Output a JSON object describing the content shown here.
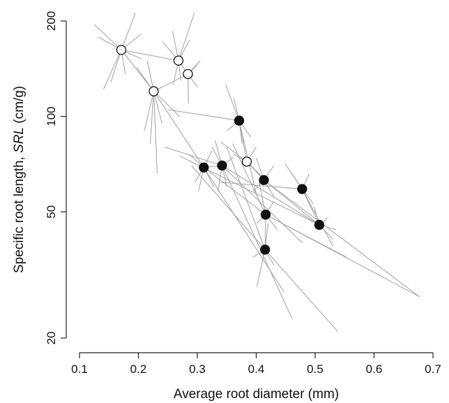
{
  "chart_data": {
    "type": "scatter",
    "xlabel": "Average root diameter (mm)",
    "ylabel_prefix": "Specific root length,",
    "ylabel_symbol": "SRL",
    "ylabel_unit": "(cm/g)",
    "xlim": [
      0.1,
      0.7
    ],
    "ylim": [
      20,
      200
    ],
    "y_scale": "log",
    "x_ticks": [
      0.1,
      0.2,
      0.3,
      0.4,
      0.5,
      0.6,
      0.7
    ],
    "x_tick_labels": [
      "0.1",
      "0.2",
      "0.3",
      "0.4",
      "0.5",
      "0.6",
      "0.7"
    ],
    "y_ticks": [
      20,
      50,
      100,
      200
    ],
    "y_tick_labels": [
      "20",
      "50",
      "100",
      "200"
    ],
    "grid": false,
    "legend": "none",
    "colors": {
      "filled": "#111111",
      "open_fill": "#ffffff",
      "outline": "#111111",
      "lines": "#a8a8a8"
    },
    "series": [
      {
        "marker": "open",
        "points": [
          {
            "x": 0.171,
            "y": 162
          },
          {
            "x": 0.226,
            "y": 120
          },
          {
            "x": 0.268,
            "y": 150
          },
          {
            "x": 0.284,
            "y": 136
          },
          {
            "x": 0.384,
            "y": 72
          }
        ]
      },
      {
        "marker": "filled",
        "points": [
          {
            "x": 0.371,
            "y": 97
          },
          {
            "x": 0.311,
            "y": 69
          },
          {
            "x": 0.342,
            "y": 70
          },
          {
            "x": 0.413,
            "y": 63
          },
          {
            "x": 0.478,
            "y": 59
          },
          {
            "x": 0.416,
            "y": 49
          },
          {
            "x": 0.507,
            "y": 45.5
          },
          {
            "x": 0.415,
            "y": 38
          }
        ]
      }
    ],
    "connections": [
      {
        "from": [
          0.171,
          162
        ],
        "to": [
          0.268,
          150
        ]
      },
      {
        "from": [
          0.226,
          120
        ],
        "to": [
          0.171,
          162
        ]
      },
      {
        "from": [
          0.226,
          120
        ],
        "to": [
          0.284,
          136
        ]
      },
      {
        "from": [
          0.268,
          150
        ],
        "to": [
          0.284,
          136
        ]
      },
      {
        "from": [
          0.226,
          120
        ],
        "to": [
          0.311,
          69
        ]
      },
      {
        "from": [
          0.371,
          97
        ],
        "to": [
          0.384,
          72
        ]
      },
      {
        "from": [
          0.384,
          72
        ],
        "to": [
          0.413,
          63
        ]
      },
      {
        "from": [
          0.311,
          69
        ],
        "to": [
          0.416,
          49
        ]
      },
      {
        "from": [
          0.342,
          70
        ],
        "to": [
          0.507,
          45.5
        ]
      },
      {
        "from": [
          0.413,
          63
        ],
        "to": [
          0.507,
          45.5
        ]
      },
      {
        "from": [
          0.478,
          59
        ],
        "to": [
          0.507,
          45.5
        ]
      },
      {
        "from": [
          0.416,
          49
        ],
        "to": [
          0.415,
          38
        ]
      },
      {
        "from": [
          0.311,
          69
        ],
        "to": [
          0.342,
          70
        ]
      },
      {
        "from": [
          0.25,
          105
        ],
        "to": [
          0.371,
          97
        ]
      },
      {
        "from": [
          0.245,
          80
        ],
        "to": [
          0.342,
          70
        ]
      },
      {
        "from": [
          0.27,
          75
        ],
        "to": [
          0.507,
          45.5
        ]
      },
      {
        "from": [
          0.29,
          70
        ],
        "to": [
          0.415,
          38
        ]
      },
      {
        "from": [
          0.35,
          80
        ],
        "to": [
          0.415,
          38
        ]
      },
      {
        "from": [
          0.36,
          82
        ],
        "to": [
          0.416,
          49
        ]
      },
      {
        "from": [
          0.34,
          62
        ],
        "to": [
          0.478,
          59
        ]
      },
      {
        "from": [
          0.413,
          63
        ],
        "to": [
          0.677,
          27
        ]
      },
      {
        "from": [
          0.416,
          49
        ],
        "to": [
          0.677,
          27
        ]
      },
      {
        "from": [
          0.416,
          49
        ],
        "to": [
          0.553,
          36
        ]
      },
      {
        "from": [
          0.415,
          38
        ],
        "to": [
          0.538,
          21
        ]
      },
      {
        "from": [
          0.342,
          70
        ],
        "to": [
          0.478,
          40
        ]
      },
      {
        "from": [
          0.311,
          69
        ],
        "to": [
          0.447,
          28
        ]
      },
      {
        "from": [
          0.342,
          70
        ],
        "to": [
          0.461,
          23
        ]
      },
      {
        "from": [
          0.478,
          59
        ],
        "to": [
          0.53,
          39
        ]
      },
      {
        "from": [
          0.371,
          97
        ],
        "to": [
          0.4,
          57
        ]
      },
      {
        "from": [
          0.384,
          72
        ],
        "to": [
          0.34,
          83
        ]
      }
    ],
    "spokes": [
      {
        "center": [
          0.171,
          162
        ],
        "ends": [
          [
            0.195,
            212
          ],
          [
            0.125,
            195
          ],
          [
            0.141,
            122
          ],
          [
            0.153,
            128
          ],
          [
            0.205,
            182
          ],
          [
            0.178,
            136
          ],
          [
            0.132,
            178
          ],
          [
            0.205,
            152
          ]
        ]
      },
      {
        "center": [
          0.226,
          120
        ],
        "ends": [
          [
            0.197,
            143
          ],
          [
            0.22,
            82
          ],
          [
            0.232,
            66
          ],
          [
            0.21,
            90
          ],
          [
            0.27,
            100
          ],
          [
            0.24,
            95
          ],
          [
            0.215,
            150
          ]
        ]
      },
      {
        "center": [
          0.268,
          150
        ],
        "ends": [
          [
            0.295,
            212
          ],
          [
            0.241,
            172
          ],
          [
            0.258,
            186
          ],
          [
            0.259,
            126
          ],
          [
            0.287,
            174
          ],
          [
            0.272,
            130
          ]
        ]
      },
      {
        "center": [
          0.284,
          136
        ],
        "ends": [
          [
            0.3,
            124
          ],
          [
            0.285,
            110
          ],
          [
            0.305,
            150
          ],
          [
            0.3,
            145
          ]
        ]
      },
      {
        "center": [
          0.384,
          72
        ],
        "ends": [
          [
            0.362,
            76
          ],
          [
            0.412,
            64
          ],
          [
            0.4,
            80
          ]
        ]
      },
      {
        "center": [
          0.371,
          97
        ],
        "ends": [
          [
            0.348,
            126
          ],
          [
            0.391,
            86
          ],
          [
            0.362,
            114
          ],
          [
            0.376,
            82
          ],
          [
            0.35,
            90
          ]
        ]
      },
      {
        "center": [
          0.311,
          69
        ],
        "ends": [
          [
            0.286,
            76
          ],
          [
            0.302,
            58
          ],
          [
            0.325,
            78
          ],
          [
            0.296,
            62
          ],
          [
            0.328,
            60
          ]
        ]
      },
      {
        "center": [
          0.342,
          70
        ],
        "ends": [
          [
            0.325,
            80
          ],
          [
            0.35,
            60
          ],
          [
            0.36,
            74
          ],
          [
            0.335,
            58
          ],
          [
            0.33,
            84
          ]
        ]
      },
      {
        "center": [
          0.413,
          63
        ],
        "ends": [
          [
            0.4,
            74
          ],
          [
            0.43,
            56
          ],
          [
            0.395,
            58
          ],
          [
            0.43,
            70
          ]
        ]
      },
      {
        "center": [
          0.478,
          59
        ],
        "ends": [
          [
            0.449,
            71
          ],
          [
            0.497,
            53
          ],
          [
            0.46,
            66
          ],
          [
            0.49,
            66
          ]
        ]
      },
      {
        "center": [
          0.416,
          49
        ],
        "ends": [
          [
            0.398,
            58
          ],
          [
            0.436,
            44
          ],
          [
            0.401,
            46
          ],
          [
            0.405,
            62
          ],
          [
            0.43,
            54
          ]
        ]
      },
      {
        "center": [
          0.507,
          45.5
        ],
        "ends": [
          [
            0.535,
            44
          ],
          [
            0.478,
            49
          ],
          [
            0.53,
            41
          ],
          [
            0.498,
            52
          ],
          [
            0.522,
            48
          ]
        ]
      },
      {
        "center": [
          0.415,
          38
        ],
        "ends": [
          [
            0.401,
            29
          ],
          [
            0.43,
            34
          ],
          [
            0.402,
            44
          ],
          [
            0.42,
            46
          ],
          [
            0.395,
            36
          ]
        ]
      }
    ]
  }
}
